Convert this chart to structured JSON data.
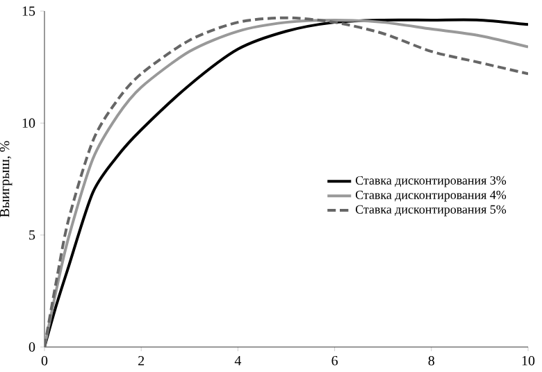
{
  "chart_data": {
    "type": "line",
    "ylabel": "Выигрыш, %",
    "xlim": [
      0,
      10
    ],
    "ylim": [
      0,
      15
    ],
    "xticks": [
      0,
      2,
      4,
      6,
      8,
      10
    ],
    "yticks": [
      0,
      5,
      10,
      15
    ],
    "grid": false,
    "legend": "right",
    "marker": "none",
    "series": [
      {
        "name": "Ставка дисконтирования 3%",
        "color": "#000000",
        "line_style": "solid",
        "x": [
          0,
          0.25,
          0.5,
          1,
          1.5,
          2,
          3,
          4,
          5,
          6,
          7,
          8,
          9,
          10
        ],
        "values": [
          0,
          1.9,
          3.6,
          6.9,
          8.5,
          9.7,
          11.7,
          13.3,
          14.1,
          14.5,
          14.6,
          14.6,
          14.6,
          14.4
        ]
      },
      {
        "name": "Ставка дисконтирования 4%",
        "color": "#999999",
        "line_style": "solid",
        "x": [
          0,
          0.25,
          0.5,
          1,
          1.5,
          2,
          3,
          4,
          5,
          6,
          7,
          8,
          9,
          10
        ],
        "values": [
          0,
          2.6,
          4.9,
          8.4,
          10.3,
          11.6,
          13.2,
          14.1,
          14.5,
          14.6,
          14.5,
          14.2,
          13.9,
          13.4
        ]
      },
      {
        "name": "Ставка дисконтирования 5%",
        "color": "#666666",
        "line_style": "dashed",
        "x": [
          0,
          0.25,
          0.5,
          1,
          1.5,
          2,
          3,
          4,
          5,
          6,
          7,
          8,
          9,
          10
        ],
        "values": [
          0,
          3.0,
          5.7,
          9.2,
          11.0,
          12.2,
          13.7,
          14.5,
          14.7,
          14.5,
          14.0,
          13.2,
          12.7,
          12.2
        ]
      }
    ]
  }
}
